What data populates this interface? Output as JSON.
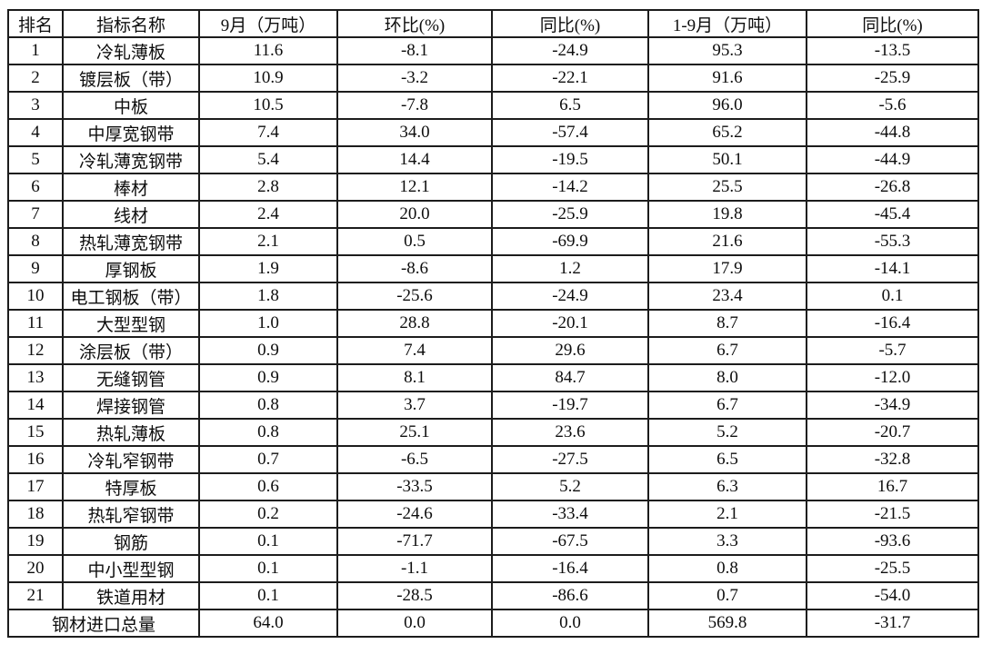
{
  "table": {
    "border_color": "#1c1c1c",
    "text_color": "#0d0d0d",
    "background_color": "#ffffff",
    "header": {
      "rank": "排名",
      "indicator": "指标名称",
      "sep_volume": "9月（万吨）",
      "mom": "环比(%)",
      "yoy": "同比(%)",
      "cum_volume": "1-9月（万吨）",
      "cum_yoy": "同比(%)"
    },
    "rows": [
      [
        "1",
        "冷轧薄板",
        "11.6",
        "-8.1",
        "-24.9",
        "95.3",
        "-13.5"
      ],
      [
        "2",
        "镀层板（带）",
        "10.9",
        "-3.2",
        "-22.1",
        "91.6",
        "-25.9"
      ],
      [
        "3",
        "中板",
        "10.5",
        "-7.8",
        "6.5",
        "96.0",
        "-5.6"
      ],
      [
        "4",
        "中厚宽钢带",
        "7.4",
        "34.0",
        "-57.4",
        "65.2",
        "-44.8"
      ],
      [
        "5",
        "冷轧薄宽钢带",
        "5.4",
        "14.4",
        "-19.5",
        "50.1",
        "-44.9"
      ],
      [
        "6",
        "棒材",
        "2.8",
        "12.1",
        "-14.2",
        "25.5",
        "-26.8"
      ],
      [
        "7",
        "线材",
        "2.4",
        "20.0",
        "-25.9",
        "19.8",
        "-45.4"
      ],
      [
        "8",
        "热轧薄宽钢带",
        "2.1",
        "0.5",
        "-69.9",
        "21.6",
        "-55.3"
      ],
      [
        "9",
        "厚钢板",
        "1.9",
        "-8.6",
        "1.2",
        "17.9",
        "-14.1"
      ],
      [
        "10",
        "电工钢板（带）",
        "1.8",
        "-25.6",
        "-24.9",
        "23.4",
        "0.1"
      ],
      [
        "11",
        "大型型钢",
        "1.0",
        "28.8",
        "-20.1",
        "8.7",
        "-16.4"
      ],
      [
        "12",
        "涂层板（带）",
        "0.9",
        "7.4",
        "29.6",
        "6.7",
        "-5.7"
      ],
      [
        "13",
        "无缝钢管",
        "0.9",
        "8.1",
        "84.7",
        "8.0",
        "-12.0"
      ],
      [
        "14",
        "焊接钢管",
        "0.8",
        "3.7",
        "-19.7",
        "6.7",
        "-34.9"
      ],
      [
        "15",
        "热轧薄板",
        "0.8",
        "25.1",
        "23.6",
        "5.2",
        "-20.7"
      ],
      [
        "16",
        "冷轧窄钢带",
        "0.7",
        "-6.5",
        "-27.5",
        "6.5",
        "-32.8"
      ],
      [
        "17",
        "特厚板",
        "0.6",
        "-33.5",
        "5.2",
        "6.3",
        "16.7"
      ],
      [
        "18",
        "热轧窄钢带",
        "0.2",
        "-24.6",
        "-33.4",
        "2.1",
        "-21.5"
      ],
      [
        "19",
        "钢筋",
        "0.1",
        "-71.7",
        "-67.5",
        "3.3",
        "-93.6"
      ],
      [
        "20",
        "中小型型钢",
        "0.1",
        "-1.1",
        "-16.4",
        "0.8",
        "-25.5"
      ],
      [
        "21",
        "铁道用材",
        "0.1",
        "-28.5",
        "-86.6",
        "0.7",
        "-54.0"
      ]
    ],
    "total_row": {
      "label": "钢材进口总量",
      "values": [
        "64.0",
        "0.0",
        "0.0",
        "569.8",
        "-31.7"
      ]
    }
  }
}
